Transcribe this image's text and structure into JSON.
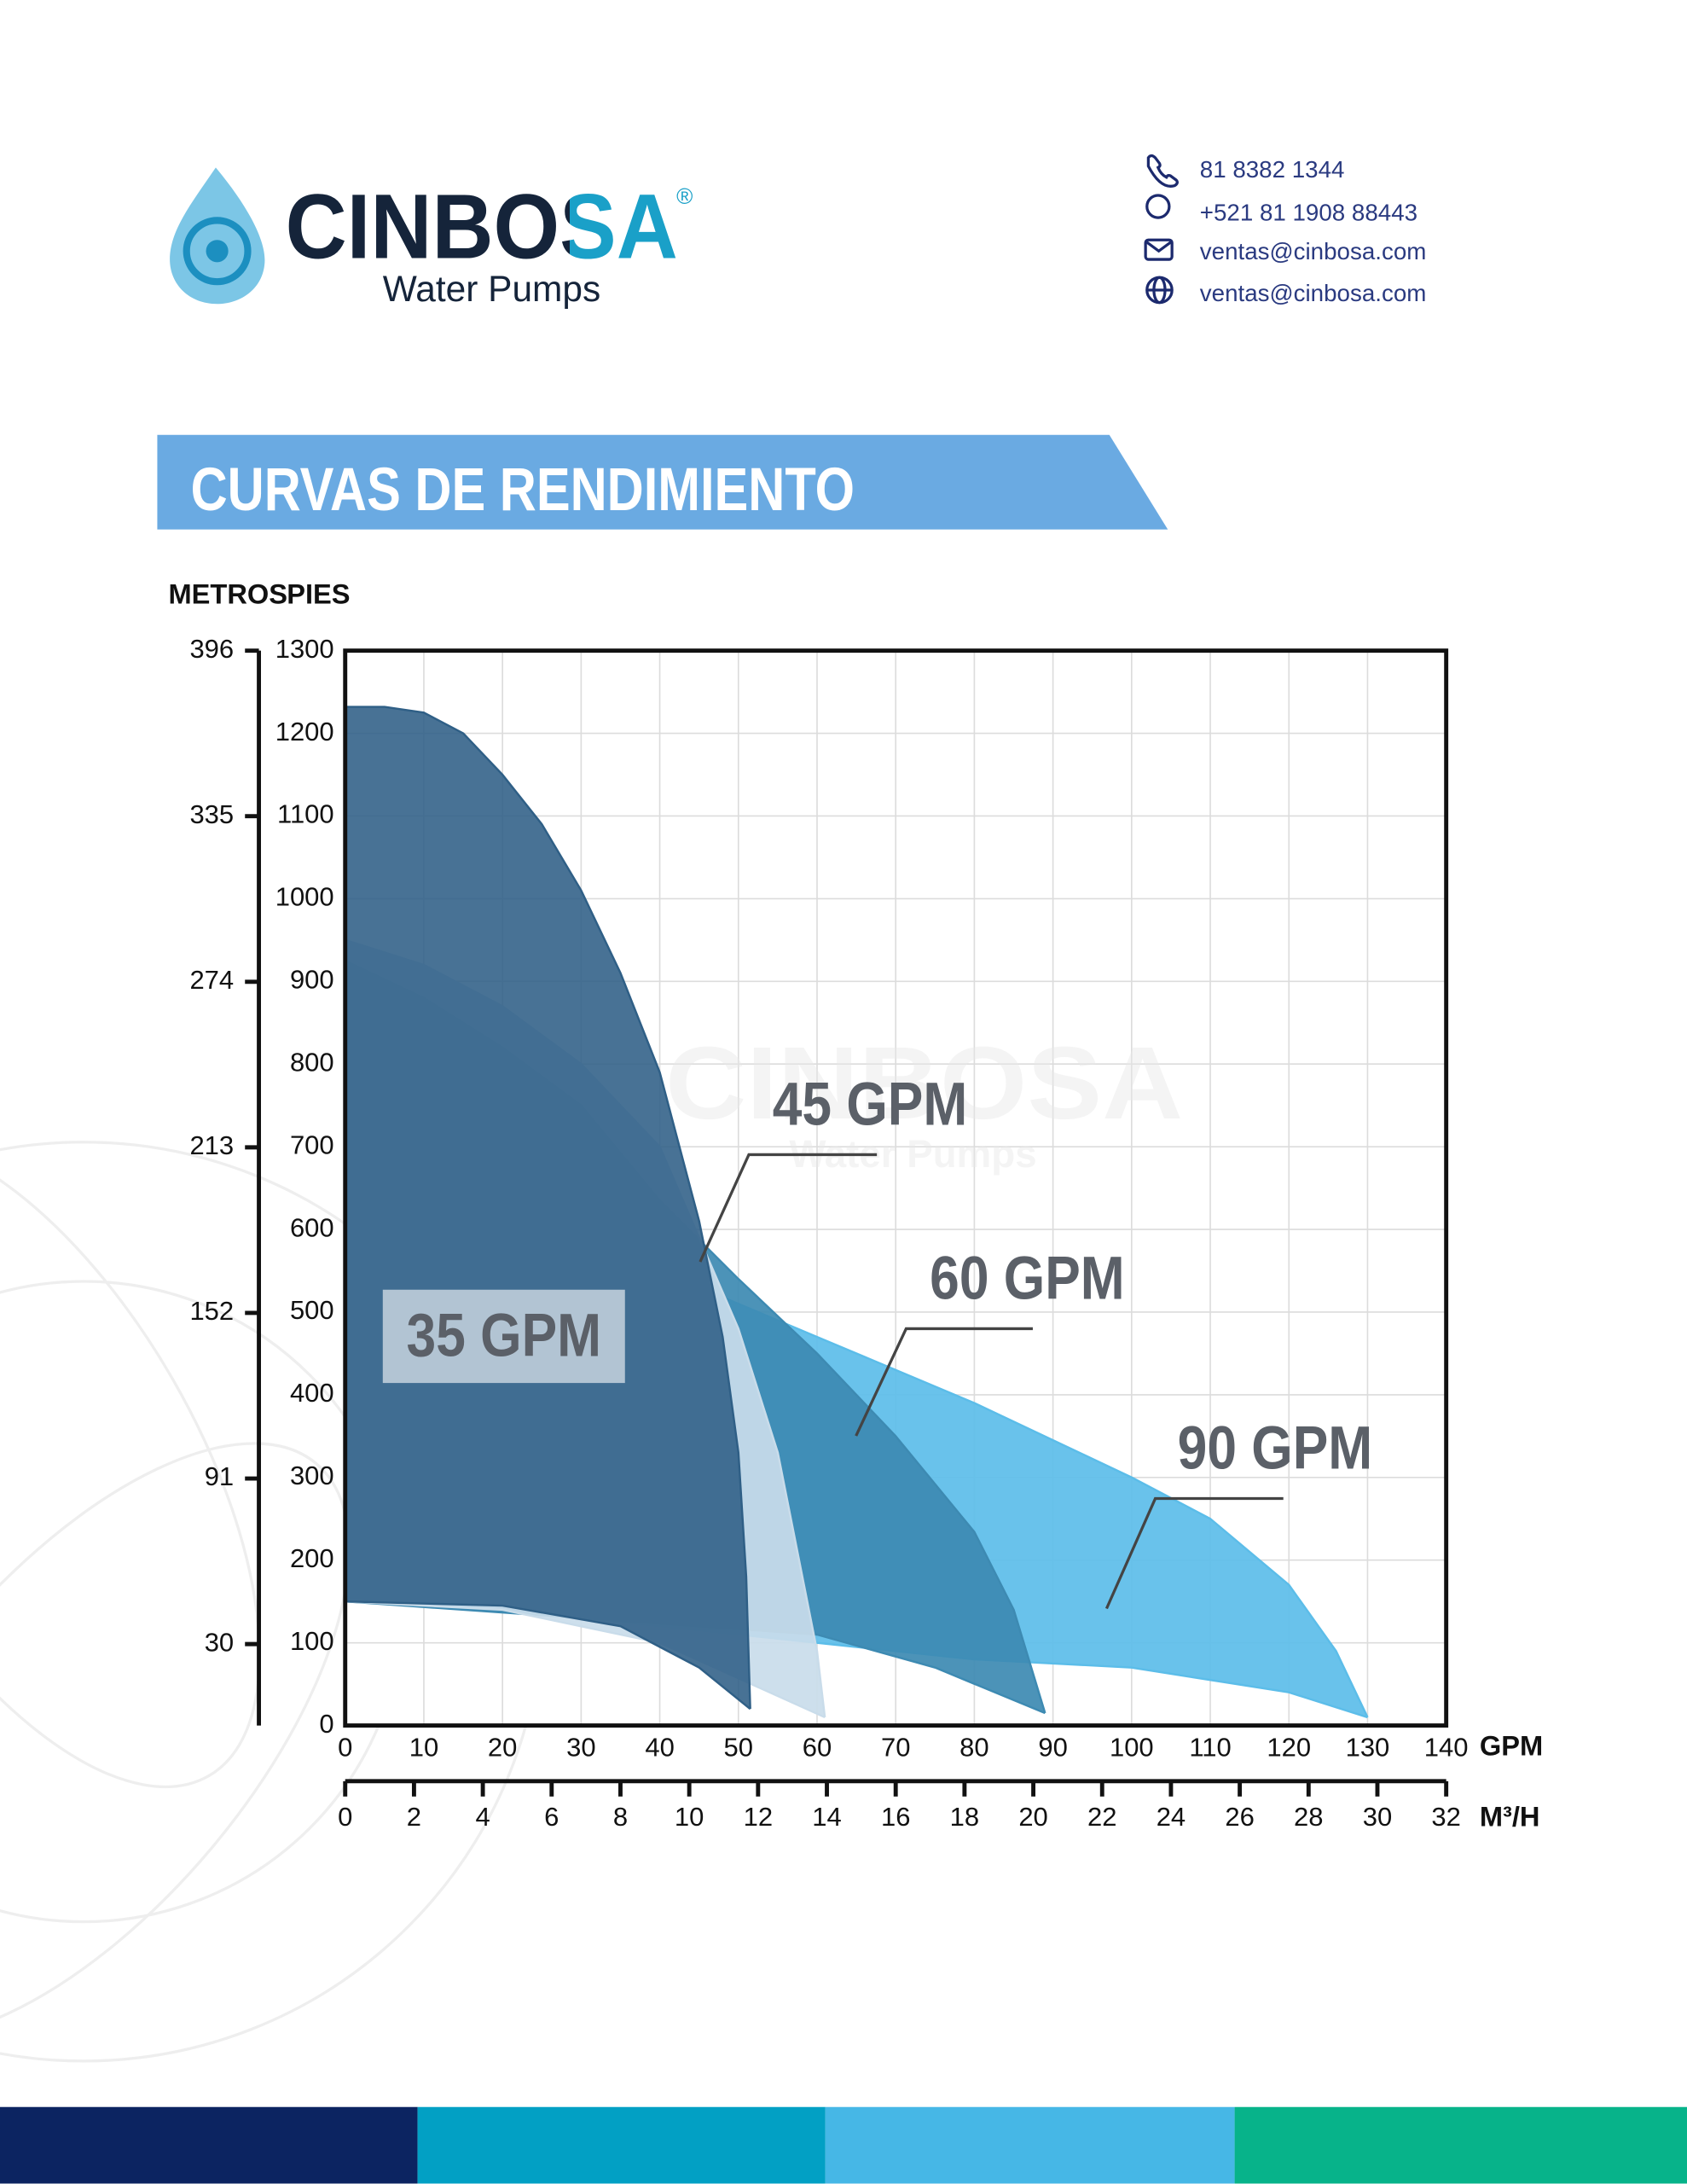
{
  "header": {
    "brand": "CINBOSA",
    "registered": "®",
    "tagline": "Water Pumps",
    "contacts": [
      "81 8382 1344",
      "+521 81 1908 88443",
      "ventas@cinbosa.com",
      "ventas@cinbosa.com"
    ]
  },
  "section_title": "CURVAS DE RENDIMIENTO",
  "watermark": {
    "brand": "CINBOSA",
    "tagline": "Water Pumps"
  },
  "chart_data": {
    "type": "area",
    "y_label": "PIES",
    "y2_label": "METROS",
    "x_label": "GPM",
    "x2_label": "M³/H",
    "xlim": [
      0,
      140
    ],
    "xticks": [
      0,
      10,
      20,
      30,
      40,
      50,
      60,
      70,
      80,
      90,
      100,
      110,
      120,
      130,
      140
    ],
    "x2lim": [
      0,
      32
    ],
    "x2ticks": [
      0,
      2,
      4,
      6,
      8,
      10,
      12,
      14,
      16,
      18,
      20,
      22,
      24,
      26,
      28,
      30,
      32
    ],
    "ylim": [
      0,
      1300
    ],
    "yticks": [
      0,
      100,
      200,
      300,
      400,
      500,
      600,
      700,
      800,
      900,
      1000,
      1100,
      1200,
      1300
    ],
    "y2lim": [
      0,
      396
    ],
    "y2ticks": [
      30,
      91,
      152,
      213,
      274,
      335,
      396
    ],
    "grid": true,
    "series": [
      {
        "name": "35 GPM",
        "color": "#2f5f86",
        "x": [
          0,
          5,
          10,
          15,
          20,
          25,
          30,
          35,
          40,
          45,
          48,
          50,
          51,
          51.5
        ],
        "values": [
          1232,
          1232,
          1225,
          1200,
          1150,
          1090,
          1010,
          910,
          790,
          610,
          470,
          330,
          180,
          20
        ],
        "lower_x": [
          0,
          20,
          35,
          45,
          51.5
        ],
        "lower_values": [
          150,
          145,
          120,
          70,
          20
        ]
      },
      {
        "name": "45 GPM",
        "color": "#c9dcea",
        "x": [
          0,
          10,
          20,
          30,
          40,
          50,
          55,
          60,
          61
        ],
        "values": [
          950,
          920,
          870,
          800,
          700,
          480,
          330,
          90,
          10
        ],
        "lower_x": [
          0,
          20,
          40,
          61
        ],
        "lower_values": [
          150,
          140,
          100,
          10
        ]
      },
      {
        "name": "60 GPM",
        "color": "#3d8ab2",
        "x": [
          0,
          10,
          20,
          30,
          40,
          50,
          60,
          70,
          80,
          85,
          89
        ],
        "values": [
          925,
          880,
          820,
          750,
          635,
          540,
          450,
          350,
          234,
          140,
          15
        ],
        "lower_x": [
          0,
          30,
          60,
          75,
          89
        ],
        "lower_values": [
          150,
          130,
          110,
          70,
          15
        ]
      },
      {
        "name": "90 GPM",
        "color": "#5cbde9",
        "x": [
          0,
          20,
          40,
          60,
          80,
          100,
          110,
          120,
          126,
          130
        ],
        "values": [
          680,
          620,
          550,
          470,
          390,
          300,
          250,
          170,
          90,
          10
        ],
        "lower_x": [
          0,
          40,
          80,
          100,
          120,
          130
        ],
        "lower_values": [
          160,
          120,
          80,
          70,
          40,
          10
        ]
      }
    ]
  }
}
